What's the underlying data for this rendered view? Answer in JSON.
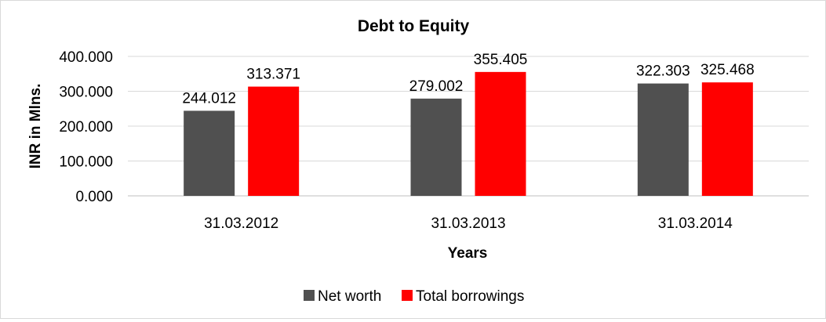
{
  "chart_data": {
    "type": "bar",
    "title": "Debt to Equity",
    "xlabel": "Years",
    "ylabel": "INR in Mlns.",
    "categories": [
      "31.03.2012",
      "31.03.2013",
      "31.03.2014"
    ],
    "series": [
      {
        "name": "Net worth",
        "color": "#505050",
        "values": [
          244.012,
          279.002,
          322.303
        ],
        "labels": [
          "244.012",
          "279.002",
          "322.303"
        ]
      },
      {
        "name": "Total borrowings",
        "color": "#ff0000",
        "values": [
          313.371,
          355.405,
          325.468
        ],
        "labels": [
          "313.371",
          "355.405",
          "325.468"
        ]
      }
    ],
    "yticks": [
      0,
      100,
      200,
      300,
      400
    ],
    "ytick_labels": [
      "0.000",
      "100.000",
      "200.000",
      "300.000",
      "400.000"
    ],
    "ylim": [
      0,
      400
    ],
    "grid": true,
    "legend": "bottom"
  }
}
